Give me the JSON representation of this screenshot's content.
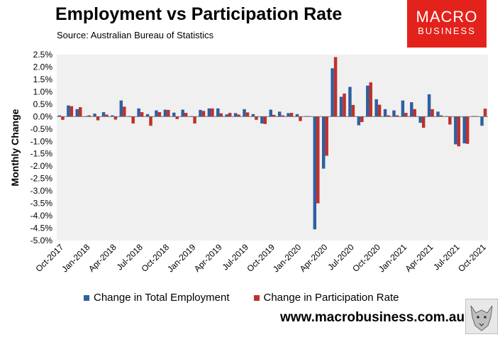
{
  "header": {
    "title": "Employment vs Participation Rate",
    "source": "Source: Australian Bureau of Statistics"
  },
  "logo": {
    "line1": "MACRO",
    "line2": "BUSINESS",
    "color": "#e3221c"
  },
  "footer": {
    "website": "www.macrobusiness.com.au",
    "mascot_icon": "wolf-icon"
  },
  "colors": {
    "employment": "#2f5fa0",
    "participation": "#c0302b",
    "plot_bg": "#f0f0f0"
  },
  "chart_data": {
    "type": "bar",
    "title": "Employment vs Participation Rate",
    "xlabel": "",
    "ylabel": "Monthly Change",
    "ylim": [
      -5.0,
      2.5
    ],
    "ytick_labels": [
      "2.5%",
      "2.0%",
      "1.5%",
      "1.0%",
      "0.5%",
      "0.0%",
      "-0.5%",
      "-1.0%",
      "-1.5%",
      "-2.0%",
      "-2.5%",
      "-3.0%",
      "-3.5%",
      "-4.0%",
      "-4.5%",
      "-5.0%"
    ],
    "xtick_labels": [
      "Oct-2017",
      "Jan-2018",
      "Apr-2018",
      "Jul-2018",
      "Oct-2018",
      "Jan-2019",
      "Apr-2019",
      "Jul-2019",
      "Oct-2019",
      "Jan-2020",
      "Apr-2020",
      "Jul-2020",
      "Oct-2020",
      "Jan-2021",
      "Apr-2021",
      "Jul-2021",
      "Oct-2021"
    ],
    "grid": false,
    "legend_position": "bottom",
    "categories": [
      "Oct-2017",
      "Nov-2017",
      "Dec-2017",
      "Jan-2018",
      "Feb-2018",
      "Mar-2018",
      "Apr-2018",
      "May-2018",
      "Jun-2018",
      "Jul-2018",
      "Aug-2018",
      "Sep-2018",
      "Oct-2018",
      "Nov-2018",
      "Dec-2018",
      "Jan-2019",
      "Feb-2019",
      "Mar-2019",
      "Apr-2019",
      "May-2019",
      "Jun-2019",
      "Jul-2019",
      "Aug-2019",
      "Sep-2019",
      "Oct-2019",
      "Nov-2019",
      "Dec-2019",
      "Jan-2020",
      "Feb-2020",
      "Mar-2020",
      "Apr-2020",
      "May-2020",
      "Jun-2020",
      "Jul-2020",
      "Aug-2020",
      "Sep-2020",
      "Oct-2020",
      "Nov-2020",
      "Dec-2020",
      "Jan-2021",
      "Feb-2021",
      "Mar-2021",
      "Apr-2021",
      "May-2021",
      "Jun-2021",
      "Jul-2021",
      "Aug-2021",
      "Sep-2021",
      "Oct-2021"
    ],
    "series": [
      {
        "name": "Change in Total Employment",
        "values": [
          0.05,
          0.45,
          0.3,
          0.02,
          0.12,
          0.18,
          0.05,
          0.65,
          0.02,
          0.33,
          0.1,
          0.25,
          0.28,
          0.16,
          0.28,
          0.02,
          0.27,
          0.33,
          0.33,
          0.09,
          0.14,
          0.3,
          0.1,
          -0.28,
          0.28,
          0.2,
          0.14,
          0.1,
          0.02,
          -4.55,
          -2.1,
          1.95,
          0.8,
          1.2,
          -0.35,
          1.25,
          0.7,
          0.3,
          0.25,
          0.65,
          0.58,
          -0.25,
          0.9,
          0.2,
          0.02,
          -1.12,
          -1.08,
          0.02,
          -0.37
        ]
      },
      {
        "name": "Change in Participation Rate",
        "values": [
          -0.13,
          0.42,
          0.38,
          0.05,
          -0.15,
          0.08,
          -0.12,
          0.4,
          -0.28,
          0.18,
          -0.37,
          0.18,
          0.27,
          -0.1,
          0.15,
          -0.28,
          0.23,
          0.33,
          0.13,
          0.15,
          0.08,
          0.17,
          -0.13,
          -0.3,
          0.07,
          0.05,
          0.15,
          -0.18,
          0.02,
          -3.5,
          -1.58,
          2.4,
          0.93,
          0.47,
          -0.22,
          1.38,
          0.48,
          0.05,
          0.05,
          0.15,
          0.3,
          -0.45,
          0.3,
          0.05,
          -0.32,
          -1.2,
          -1.1,
          0.02,
          0.32
        ]
      }
    ]
  }
}
